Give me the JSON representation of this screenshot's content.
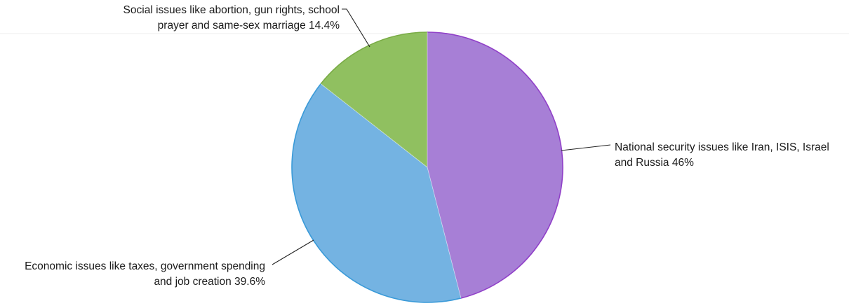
{
  "chart_data": {
    "type": "pie",
    "title": "",
    "legend": "none",
    "slices": [
      {
        "label_lines": [
          "National security issues like Iran, ISIS, Israel",
          "and Russia 46%"
        ],
        "value": 46,
        "color": "#a77fd6",
        "edge": "#9040c8"
      },
      {
        "label_lines": [
          "Economic issues like taxes, government spending",
          "and job creation 39.6%"
        ],
        "value": 39.6,
        "color": "#74b3e2",
        "edge": "#3a9ad8"
      },
      {
        "label_lines": [
          "Social issues like abortion, gun rights, school",
          "prayer and same-sex marriage 14.4%"
        ],
        "value": 14.4,
        "color": "#90c060",
        "edge": "#79ab45"
      }
    ]
  }
}
